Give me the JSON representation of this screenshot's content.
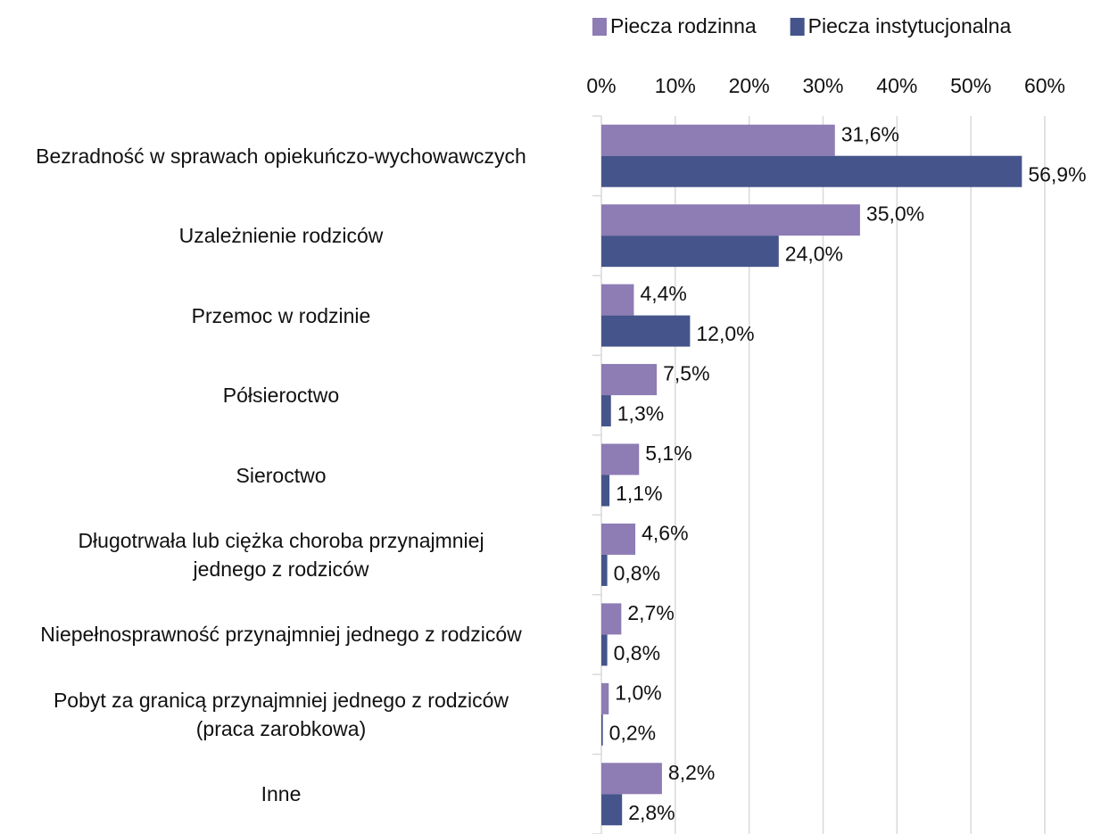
{
  "chart_data": {
    "type": "bar",
    "orientation": "horizontal",
    "categories": [
      "Bezradność w sprawach opiekuńczo-wychowawczych",
      "Uzależnienie rodziców",
      "Przemoc w rodzinie",
      "Półsieroctwo",
      "Sieroctwo",
      "Długotrwała lub ciężka choroba przynajmniej\njednego z rodziców",
      "Niepełnosprawność przynajmniej jednego z rodziców",
      "Pobyt za granicą przynajmniej jednego z rodziców\n(praca zarobkowa)",
      "Inne"
    ],
    "series": [
      {
        "name": "Piecza rodzinna",
        "color": "#8e7cb4",
        "values": [
          31.6,
          35.0,
          4.4,
          7.5,
          5.1,
          4.6,
          2.7,
          1.0,
          8.2
        ],
        "value_labels": [
          "31,6%",
          "35,0%",
          "4,4%",
          "7,5%",
          "5,1%",
          "4,6%",
          "2,7%",
          "1,0%",
          "8,2%"
        ]
      },
      {
        "name": "Piecza instytucjonalna",
        "color": "#45548b",
        "values": [
          56.9,
          24.0,
          12.0,
          1.3,
          1.1,
          0.8,
          0.8,
          0.2,
          2.8
        ],
        "value_labels": [
          "56,9%",
          "24,0%",
          "12,0%",
          "1,3%",
          "1,1%",
          "0,8%",
          "0,8%",
          "0,2%",
          "2,8%"
        ]
      }
    ],
    "xlim": [
      0,
      60
    ],
    "xticks": [
      {
        "value": 0,
        "label": "0%"
      },
      {
        "value": 10,
        "label": "10%"
      },
      {
        "value": 20,
        "label": "20%"
      },
      {
        "value": 30,
        "label": "30%"
      },
      {
        "value": 40,
        "label": "40%"
      },
      {
        "value": 50,
        "label": "50%"
      },
      {
        "value": 60,
        "label": "60%"
      }
    ],
    "grid": true,
    "legend": "top"
  }
}
